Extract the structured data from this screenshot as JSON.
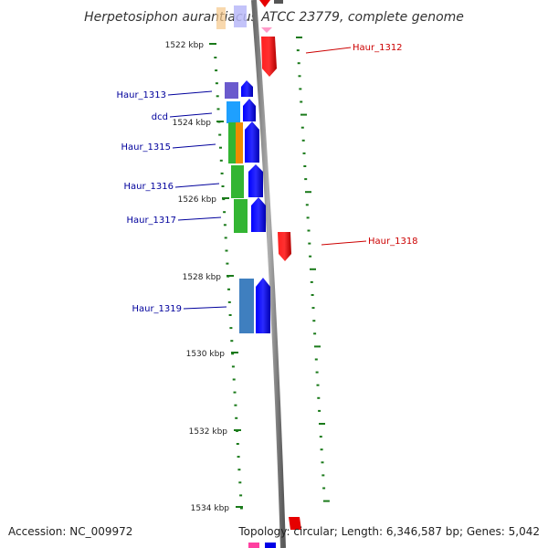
{
  "title": "Herpetosiphon aurantiacus ATCC 23779, complete genome",
  "accession": "Accession: NC_009972",
  "topology": "Topology: circular; Length: 6,346,587 bp; Genes: 5,042",
  "kbp_ticks": [
    {
      "label": "1522 kbp",
      "pos": 1522
    },
    {
      "label": "1524 kbp",
      "pos": 1524
    },
    {
      "label": "1526 kbp",
      "pos": 1526
    },
    {
      "label": "1528 kbp",
      "pos": 1528
    },
    {
      "label": "1530 kbp",
      "pos": 1530
    },
    {
      "label": "1532 kbp",
      "pos": 1532
    },
    {
      "label": "1534 kbp",
      "pos": 1534
    }
  ],
  "genes": [
    {
      "name": "Haur_1312",
      "strand": "minus",
      "color": "#e60000"
    },
    {
      "name": "Haur_1313",
      "strand": "plus",
      "color": "#0000e6"
    },
    {
      "name": "dcd",
      "strand": "plus",
      "color": "#0000e6"
    },
    {
      "name": "Haur_1315",
      "strand": "plus",
      "color": "#0000e6"
    },
    {
      "name": "Haur_1316",
      "strand": "plus",
      "color": "#0000e6"
    },
    {
      "name": "Haur_1317",
      "strand": "plus",
      "color": "#0000e6"
    },
    {
      "name": "Haur_1318",
      "strand": "minus",
      "color": "#e60000"
    },
    {
      "name": "Haur_1319",
      "strand": "plus",
      "color": "#0000e6"
    }
  ],
  "colors": {
    "plus_label": "#00009c",
    "minus_label": "#cc0000",
    "backbone": "#8a8a8a",
    "tick": "#1a7a1a",
    "cog_purple": "#6a5acd",
    "cog_cyan": "#1ea0ff",
    "cog_green": "#33b533",
    "cog_orange": "#f08c00",
    "cog_steelblue": "#3f7fbf",
    "cog_pink": "#ff80c0"
  }
}
